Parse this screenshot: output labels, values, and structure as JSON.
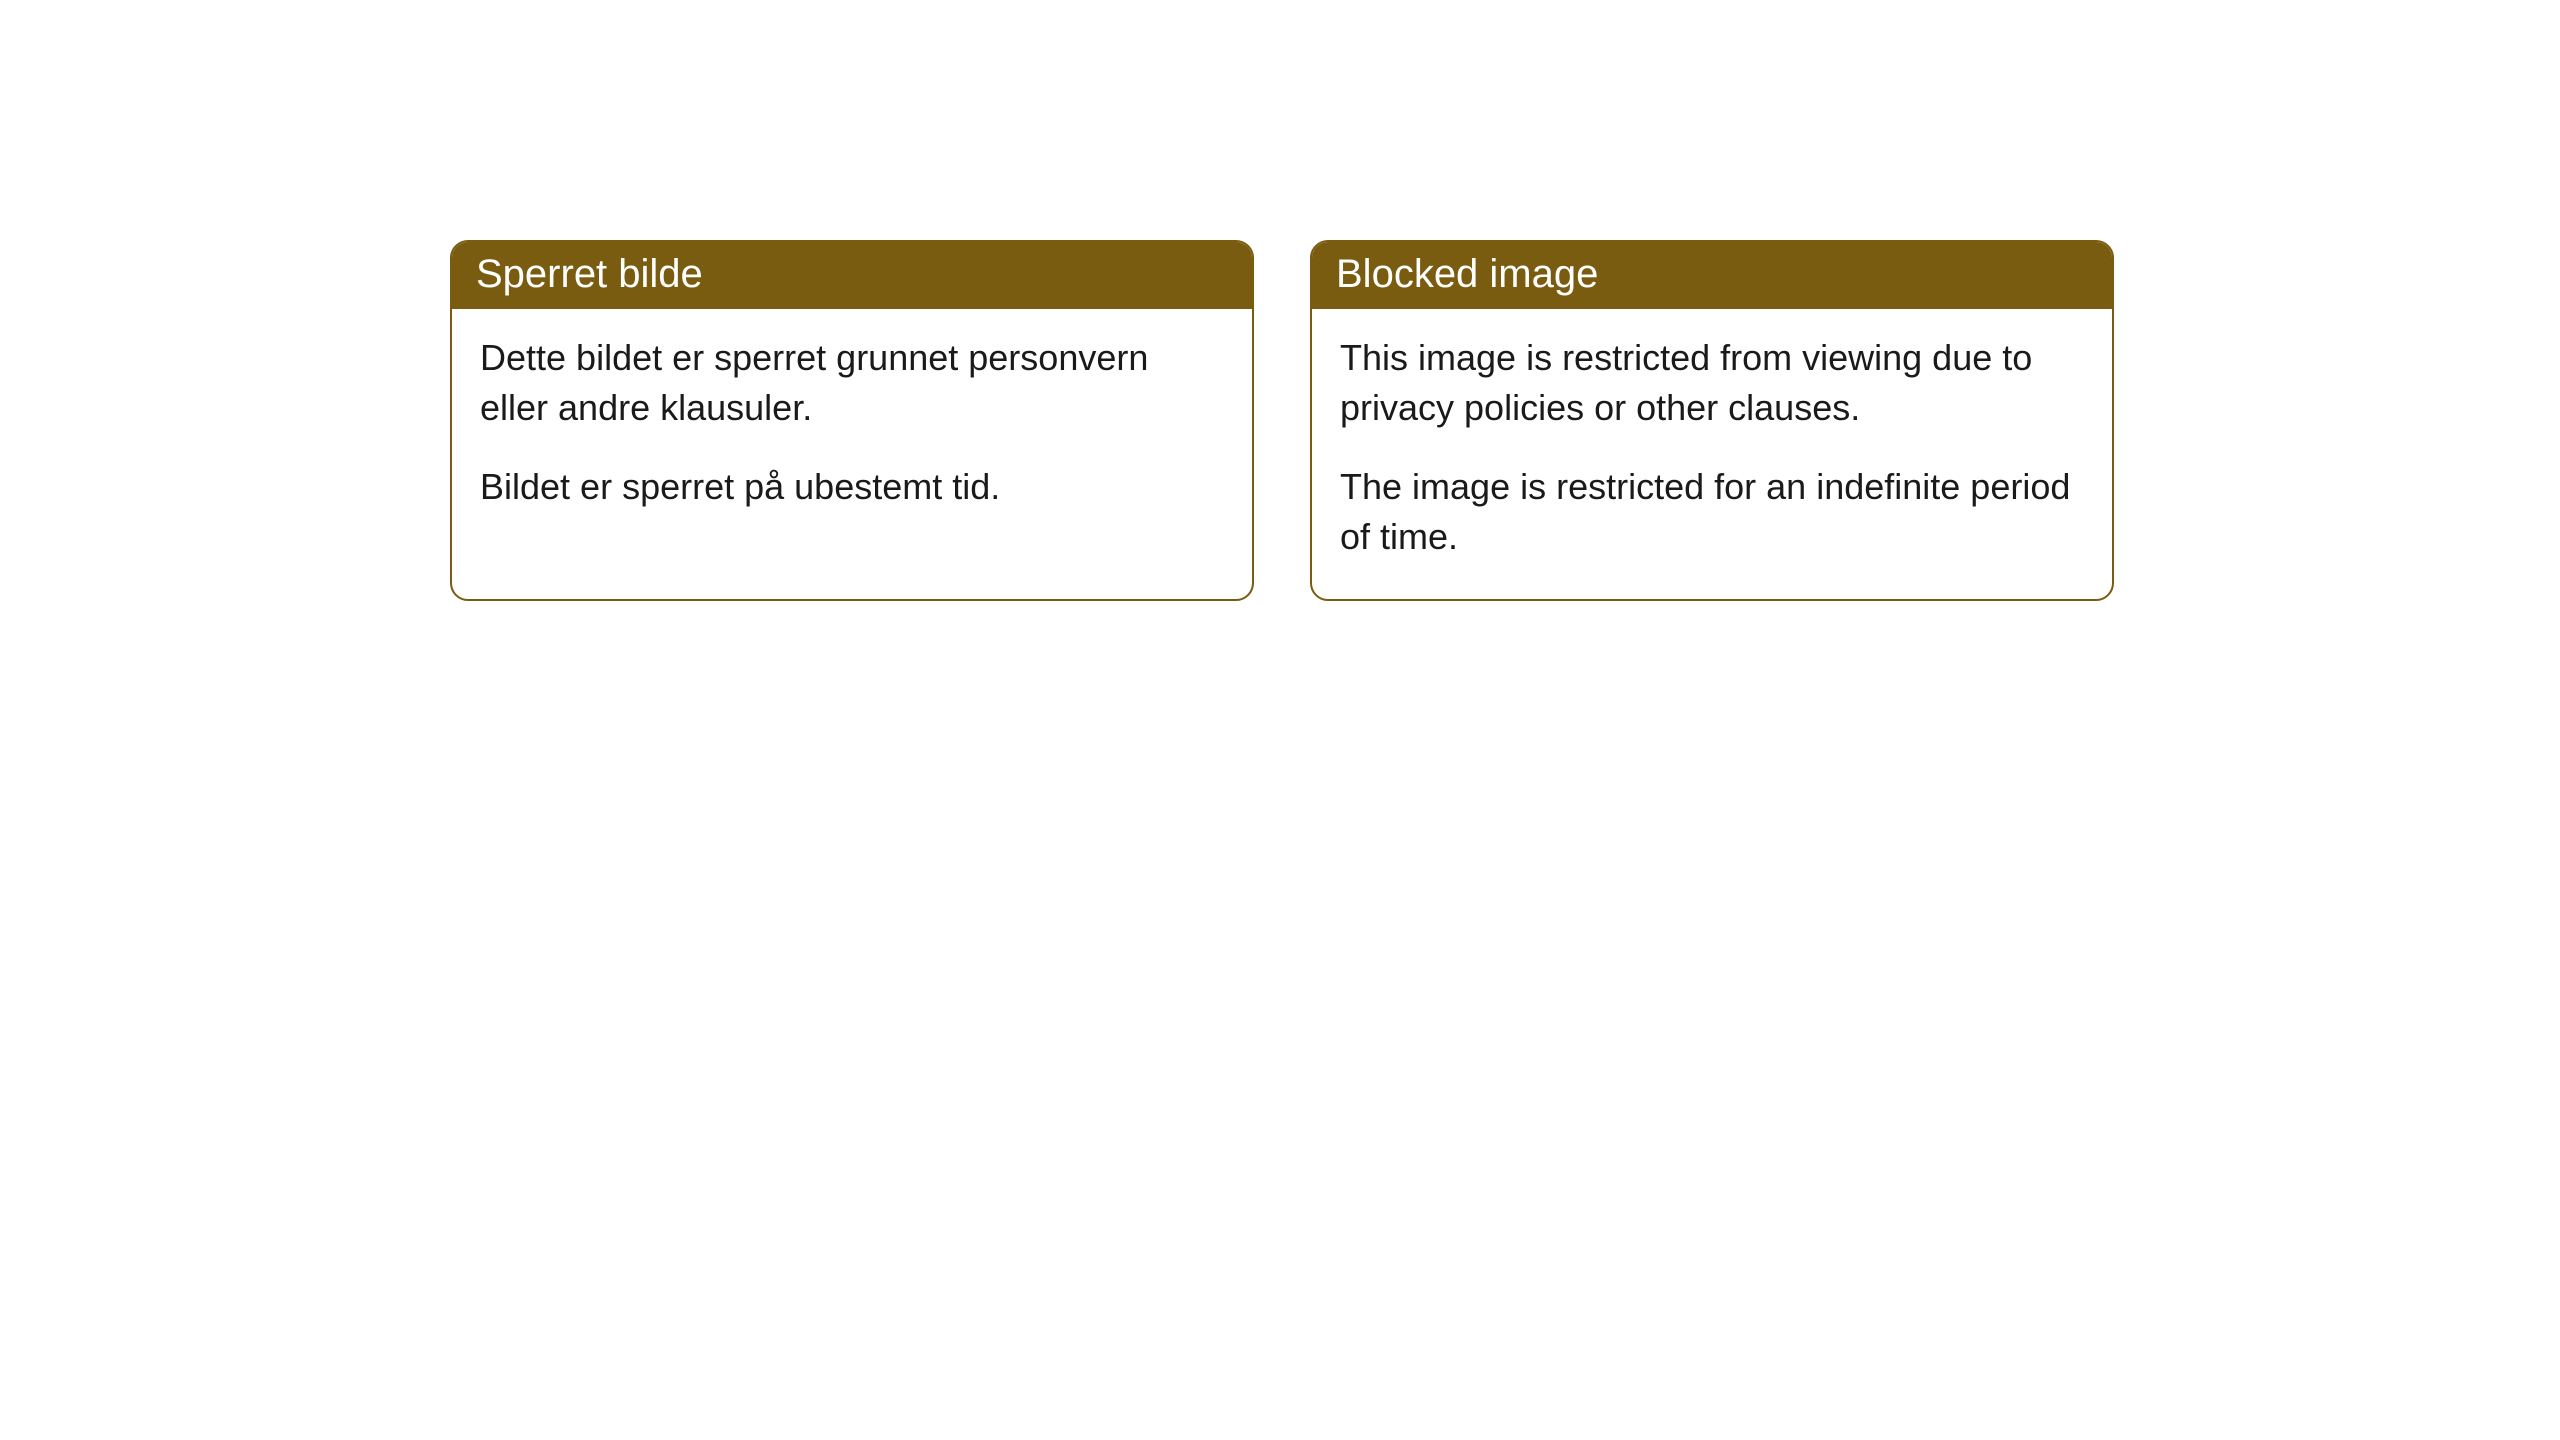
{
  "cards": [
    {
      "title": "Sperret bilde",
      "paragraph1": "Dette bildet er sperret grunnet personvern eller andre klausuler.",
      "paragraph2": "Bildet er sperret på ubestemt tid."
    },
    {
      "title": "Blocked image",
      "paragraph1": "This image is restricted from viewing due to privacy policies or other clauses.",
      "paragraph2": "The image is restricted for an indefinite period of time."
    }
  ],
  "colors": {
    "header_bg": "#7a5c10",
    "header_text": "#ffffff",
    "body_bg": "#ffffff",
    "body_text": "#1a1a1a",
    "border": "#7a5c10"
  }
}
